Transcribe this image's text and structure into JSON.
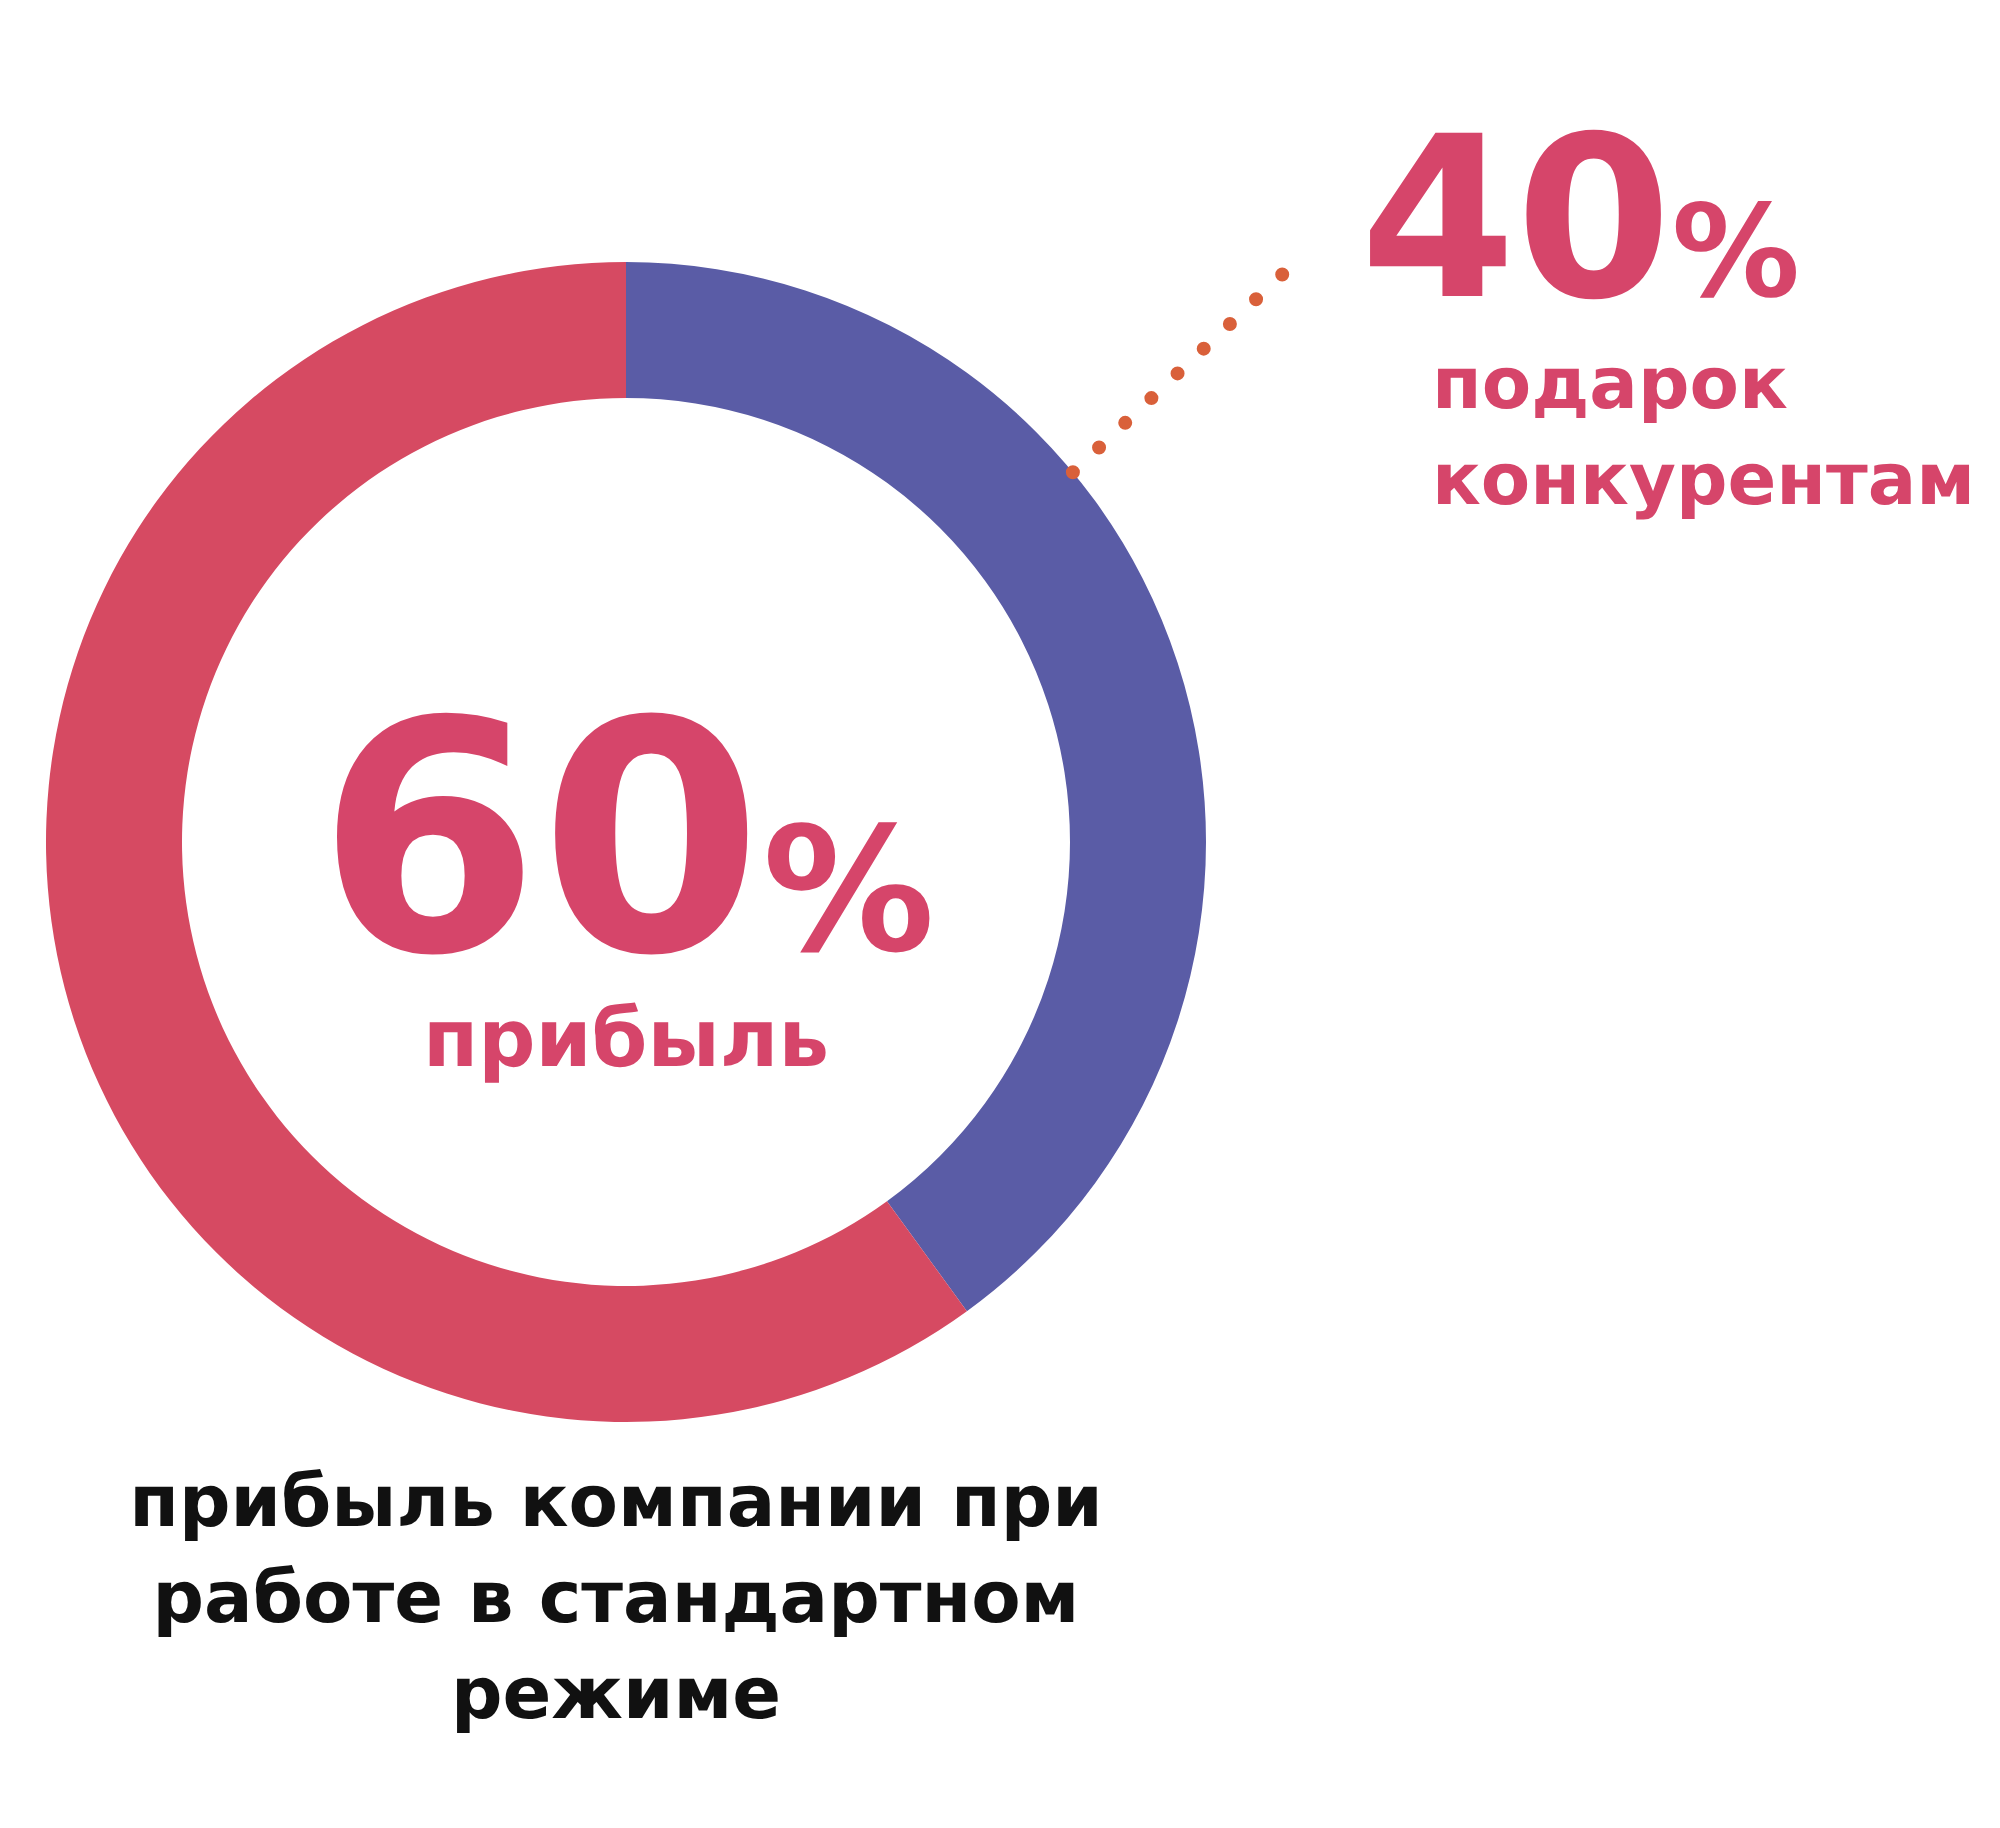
{
  "chart_data": {
    "type": "donut",
    "title": "прибыль компании при работе в стандартном режиме",
    "categories": [
      "подарок конкурентам",
      "прибыль"
    ],
    "values": [
      40,
      60
    ],
    "colors": [
      "#5a5ca6",
      "#d64a62"
    ],
    "value_labels": [
      "40%",
      "60%"
    ]
  }
}
